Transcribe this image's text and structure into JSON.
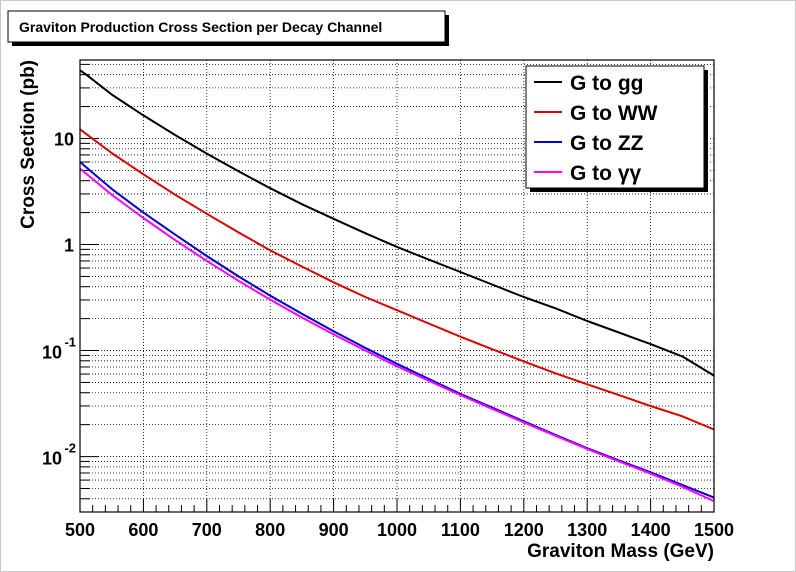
{
  "chart_data": {
    "type": "line",
    "title": "Graviton Production Cross Section per Decay Channel",
    "xlabel": "Graviton Mass (GeV)",
    "ylabel": "Cross Section (pb)",
    "xlim": [
      500,
      1500
    ],
    "ylim": [
      0.003,
      55
    ],
    "yscale": "log",
    "grid": true,
    "legend_position": "top-right",
    "x_ticks": [
      500,
      600,
      700,
      800,
      900,
      1000,
      1100,
      1200,
      1300,
      1400,
      1500
    ],
    "y_tick_labels": [
      {
        "value": 10,
        "base": "10",
        "exp": ""
      },
      {
        "value": 1,
        "base": "1",
        "exp": ""
      },
      {
        "value": 0.1,
        "base": "10",
        "exp": "-1"
      },
      {
        "value": 0.01,
        "base": "10",
        "exp": "-2"
      }
    ],
    "series": [
      {
        "name": "G to gg",
        "color": "#000000",
        "x": [
          500,
          510,
          550,
          600,
          650,
          700,
          750,
          800,
          850,
          900,
          950,
          1000,
          1050,
          1100,
          1150,
          1200,
          1250,
          1300,
          1350,
          1400,
          1450,
          1500
        ],
        "values": [
          44,
          40,
          26,
          16.5,
          10.8,
          7.2,
          4.9,
          3.4,
          2.4,
          1.75,
          1.28,
          0.95,
          0.72,
          0.55,
          0.42,
          0.32,
          0.25,
          0.19,
          0.148,
          0.115,
          0.088,
          0.058
        ]
      },
      {
        "name": "G to WW",
        "color": "#e00000",
        "x": [
          500,
          550,
          600,
          650,
          700,
          750,
          800,
          850,
          900,
          950,
          1000,
          1050,
          1100,
          1150,
          1200,
          1250,
          1300,
          1350,
          1400,
          1450,
          1500
        ],
        "values": [
          12.2,
          7.3,
          4.6,
          2.95,
          1.95,
          1.3,
          0.88,
          0.62,
          0.44,
          0.32,
          0.24,
          0.18,
          0.135,
          0.103,
          0.079,
          0.061,
          0.048,
          0.038,
          0.03,
          0.024,
          0.018
        ]
      },
      {
        "name": "G to ZZ",
        "color": "#0000e0",
        "x": [
          500,
          550,
          600,
          650,
          700,
          750,
          800,
          850,
          900,
          950,
          1000,
          1050,
          1100,
          1150,
          1200,
          1250,
          1300,
          1350,
          1400,
          1450,
          1500
        ],
        "values": [
          6.0,
          3.35,
          2.0,
          1.24,
          0.78,
          0.5,
          0.33,
          0.222,
          0.152,
          0.106,
          0.075,
          0.054,
          0.039,
          0.029,
          0.0215,
          0.016,
          0.012,
          0.0092,
          0.0071,
          0.0054,
          0.0041
        ]
      },
      {
        "name": "G to γγ",
        "color": "#ff00ff",
        "x": [
          500,
          550,
          600,
          650,
          700,
          750,
          800,
          850,
          900,
          950,
          1000,
          1050,
          1100,
          1150,
          1200,
          1250,
          1300,
          1350,
          1400,
          1450,
          1500
        ],
        "values": [
          5.2,
          2.95,
          1.78,
          1.1,
          0.7,
          0.455,
          0.302,
          0.205,
          0.142,
          0.1,
          0.071,
          0.052,
          0.038,
          0.0282,
          0.021,
          0.0157,
          0.0118,
          0.009,
          0.0069,
          0.0052,
          0.0038
        ]
      }
    ]
  }
}
